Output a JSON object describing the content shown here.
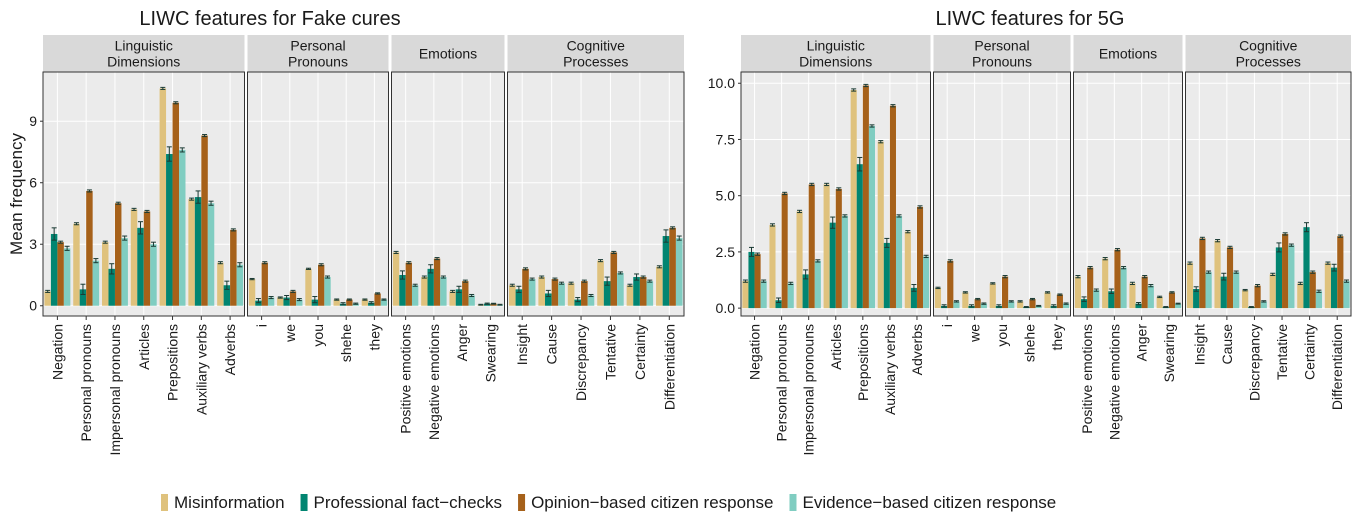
{
  "figure": {
    "ylabel": "Mean frequency",
    "legend": {
      "placement": "bottom",
      "entries": [
        {
          "name": "Misinformation",
          "color": "#dfc27d"
        },
        {
          "name": "Professional fact−checks",
          "color": "#018571"
        },
        {
          "name": "Opinion−based citizen response",
          "color": "#a6611a"
        },
        {
          "name": "Evidence−based citizen response",
          "color": "#80cdc1"
        }
      ]
    }
  },
  "chart_data": [
    {
      "type": "bar",
      "title": "LIWC features for Fake cures",
      "ylabel": "Mean frequency",
      "ylim": [
        -0.5,
        11.4
      ],
      "yticks": [
        0,
        3,
        6,
        9
      ],
      "grid": true,
      "series_names": [
        "Misinformation",
        "Professional fact−checks",
        "Opinion−based citizen response",
        "Evidence−based citizen response"
      ],
      "facets": [
        {
          "label": "Linguistic\nDimensions",
          "categories": [
            {
              "name": "Negation",
              "values": [
                0.7,
                3.5,
                3.1,
                2.8
              ],
              "errors": [
                0.05,
                0.3,
                0.05,
                0.1
              ]
            },
            {
              "name": "Personal pronouns",
              "values": [
                4.0,
                0.8,
                5.6,
                2.2
              ],
              "errors": [
                0.05,
                0.25,
                0.05,
                0.1
              ]
            },
            {
              "name": "Impersonal pronouns",
              "values": [
                3.1,
                1.8,
                5.0,
                3.3
              ],
              "errors": [
                0.05,
                0.25,
                0.05,
                0.1
              ]
            },
            {
              "name": "Articles",
              "values": [
                4.7,
                3.8,
                4.6,
                3.0
              ],
              "errors": [
                0.05,
                0.3,
                0.05,
                0.1
              ]
            },
            {
              "name": "Prepositions",
              "values": [
                10.6,
                7.4,
                9.9,
                7.6
              ],
              "errors": [
                0.05,
                0.35,
                0.05,
                0.1
              ]
            },
            {
              "name": "Auxiliary verbs",
              "values": [
                5.2,
                5.3,
                8.3,
                5.0
              ],
              "errors": [
                0.05,
                0.3,
                0.05,
                0.1
              ]
            },
            {
              "name": "Adverbs",
              "values": [
                2.1,
                1.0,
                3.7,
                2.0
              ],
              "errors": [
                0.05,
                0.2,
                0.05,
                0.1
              ]
            }
          ]
        },
        {
          "label": "Personal\nPronouns",
          "categories": [
            {
              "name": "i",
              "values": [
                1.3,
                0.25,
                2.1,
                0.4
              ],
              "errors": [
                0.03,
                0.1,
                0.05,
                0.05
              ]
            },
            {
              "name": "we",
              "values": [
                0.4,
                0.4,
                0.7,
                0.3
              ],
              "errors": [
                0.03,
                0.1,
                0.05,
                0.05
              ]
            },
            {
              "name": "you",
              "values": [
                1.8,
                0.3,
                2.0,
                1.4
              ],
              "errors": [
                0.03,
                0.15,
                0.05,
                0.05
              ]
            },
            {
              "name": "shehe",
              "values": [
                0.3,
                0.1,
                0.3,
                0.1
              ],
              "errors": [
                0.03,
                0.05,
                0.03,
                0.03
              ]
            },
            {
              "name": "they",
              "values": [
                0.3,
                0.15,
                0.6,
                0.3
              ],
              "errors": [
                0.03,
                0.05,
                0.03,
                0.03
              ]
            }
          ]
        },
        {
          "label": "Emotions",
          "categories": [
            {
              "name": "Positive emotions",
              "values": [
                2.6,
                1.5,
                2.1,
                1.0
              ],
              "errors": [
                0.05,
                0.2,
                0.05,
                0.05
              ]
            },
            {
              "name": "Negative emotions",
              "values": [
                1.4,
                1.8,
                2.3,
                1.4
              ],
              "errors": [
                0.05,
                0.2,
                0.05,
                0.05
              ]
            },
            {
              "name": "Anger",
              "values": [
                0.7,
                0.8,
                1.2,
                0.5
              ],
              "errors": [
                0.05,
                0.15,
                0.05,
                0.05
              ]
            },
            {
              "name": "Swearing",
              "values": [
                0.05,
                0.1,
                0.1,
                0.05
              ],
              "errors": [
                0.02,
                0.03,
                0.02,
                0.02
              ]
            }
          ]
        },
        {
          "label": "Cognitive\nProcesses",
          "categories": [
            {
              "name": "Insight",
              "values": [
                1.0,
                0.8,
                1.8,
                1.3
              ],
              "errors": [
                0.05,
                0.15,
                0.05,
                0.05
              ]
            },
            {
              "name": "Cause",
              "values": [
                1.4,
                0.6,
                1.3,
                1.1
              ],
              "errors": [
                0.05,
                0.15,
                0.05,
                0.05
              ]
            },
            {
              "name": "Discrepancy",
              "values": [
                1.1,
                0.3,
                1.2,
                0.5
              ],
              "errors": [
                0.05,
                0.1,
                0.05,
                0.05
              ]
            },
            {
              "name": "Tentative",
              "values": [
                2.2,
                1.2,
                2.6,
                1.6
              ],
              "errors": [
                0.05,
                0.2,
                0.05,
                0.05
              ]
            },
            {
              "name": "Certainty",
              "values": [
                1.0,
                1.4,
                1.4,
                1.2
              ],
              "errors": [
                0.05,
                0.15,
                0.05,
                0.05
              ]
            },
            {
              "name": "Differentiation",
              "values": [
                1.9,
                3.4,
                3.8,
                3.3
              ],
              "errors": [
                0.05,
                0.3,
                0.05,
                0.1
              ]
            }
          ]
        }
      ]
    },
    {
      "type": "bar",
      "title": "LIWC features for 5G",
      "ylabel": "",
      "ylim": [
        -0.35,
        10.5
      ],
      "yticks": [
        0.0,
        2.5,
        5.0,
        7.5,
        10.0
      ],
      "ytick_labels": [
        "0.0",
        "2.5",
        "5.0",
        "7.5",
        "10.0"
      ],
      "grid": true,
      "series_names": [
        "Misinformation",
        "Professional fact−checks",
        "Opinion−based citizen response",
        "Evidence−based citizen response"
      ],
      "facets": [
        {
          "label": "Linguistic\nDimensions",
          "categories": [
            {
              "name": "Negation",
              "values": [
                1.2,
                2.5,
                2.4,
                1.2
              ],
              "errors": [
                0.05,
                0.2,
                0.05,
                0.05
              ]
            },
            {
              "name": "Personal pronouns",
              "values": [
                3.7,
                0.35,
                5.1,
                1.1
              ],
              "errors": [
                0.05,
                0.1,
                0.05,
                0.05
              ]
            },
            {
              "name": "Impersonal pronouns",
              "values": [
                4.3,
                1.5,
                5.5,
                2.1
              ],
              "errors": [
                0.05,
                0.2,
                0.05,
                0.05
              ]
            },
            {
              "name": "Articles",
              "values": [
                5.5,
                3.8,
                5.3,
                4.1
              ],
              "errors": [
                0.05,
                0.25,
                0.05,
                0.05
              ]
            },
            {
              "name": "Prepositions",
              "values": [
                9.7,
                6.4,
                9.9,
                8.1
              ],
              "errors": [
                0.05,
                0.3,
                0.05,
                0.05
              ]
            },
            {
              "name": "Auxiliary verbs",
              "values": [
                7.4,
                2.9,
                9.0,
                4.1
              ],
              "errors": [
                0.05,
                0.2,
                0.05,
                0.05
              ]
            },
            {
              "name": "Adverbs",
              "values": [
                3.4,
                0.9,
                4.5,
                2.3
              ],
              "errors": [
                0.05,
                0.15,
                0.05,
                0.05
              ]
            }
          ]
        },
        {
          "label": "Personal\nPronouns",
          "categories": [
            {
              "name": "i",
              "values": [
                0.9,
                0.1,
                2.1,
                0.3
              ],
              "errors": [
                0.03,
                0.05,
                0.05,
                0.03
              ]
            },
            {
              "name": "we",
              "values": [
                0.7,
                0.1,
                0.4,
                0.2
              ],
              "errors": [
                0.03,
                0.05,
                0.03,
                0.03
              ]
            },
            {
              "name": "you",
              "values": [
                1.1,
                0.1,
                1.4,
                0.3
              ],
              "errors": [
                0.03,
                0.05,
                0.05,
                0.03
              ]
            },
            {
              "name": "shehe",
              "values": [
                0.3,
                0.05,
                0.4,
                0.1
              ],
              "errors": [
                0.03,
                0.02,
                0.03,
                0.02
              ]
            },
            {
              "name": "they",
              "values": [
                0.7,
                0.1,
                0.6,
                0.2
              ],
              "errors": [
                0.03,
                0.05,
                0.03,
                0.03
              ]
            }
          ]
        },
        {
          "label": "Emotions",
          "categories": [
            {
              "name": "Positive emotions",
              "values": [
                1.4,
                0.4,
                1.8,
                0.8
              ],
              "errors": [
                0.05,
                0.1,
                0.05,
                0.05
              ]
            },
            {
              "name": "Negative emotions",
              "values": [
                2.2,
                0.75,
                2.6,
                1.8
              ],
              "errors": [
                0.05,
                0.1,
                0.05,
                0.05
              ]
            },
            {
              "name": "Anger",
              "values": [
                1.1,
                0.2,
                1.4,
                1.0
              ],
              "errors": [
                0.05,
                0.05,
                0.05,
                0.05
              ]
            },
            {
              "name": "Swearing",
              "values": [
                0.5,
                0.05,
                0.7,
                0.2
              ],
              "errors": [
                0.03,
                0.02,
                0.03,
                0.02
              ]
            }
          ]
        },
        {
          "label": "Cognitive\nProcesses",
          "categories": [
            {
              "name": "Insight",
              "values": [
                2.0,
                0.85,
                3.1,
                1.6
              ],
              "errors": [
                0.05,
                0.1,
                0.05,
                0.05
              ]
            },
            {
              "name": "Cause",
              "values": [
                3.0,
                1.4,
                2.7,
                1.6
              ],
              "errors": [
                0.05,
                0.15,
                0.05,
                0.05
              ]
            },
            {
              "name": "Discrepancy",
              "values": [
                0.8,
                0.05,
                1.0,
                0.3
              ],
              "errors": [
                0.03,
                0.02,
                0.05,
                0.03
              ]
            },
            {
              "name": "Tentative",
              "values": [
                1.5,
                2.7,
                3.3,
                2.8
              ],
              "errors": [
                0.05,
                0.2,
                0.05,
                0.05
              ]
            },
            {
              "name": "Certainty",
              "values": [
                1.1,
                3.6,
                1.6,
                0.75
              ],
              "errors": [
                0.05,
                0.2,
                0.05,
                0.05
              ]
            },
            {
              "name": "Differentiation",
              "values": [
                2.0,
                1.8,
                3.2,
                1.2
              ],
              "errors": [
                0.05,
                0.15,
                0.05,
                0.05
              ]
            }
          ]
        }
      ]
    }
  ]
}
